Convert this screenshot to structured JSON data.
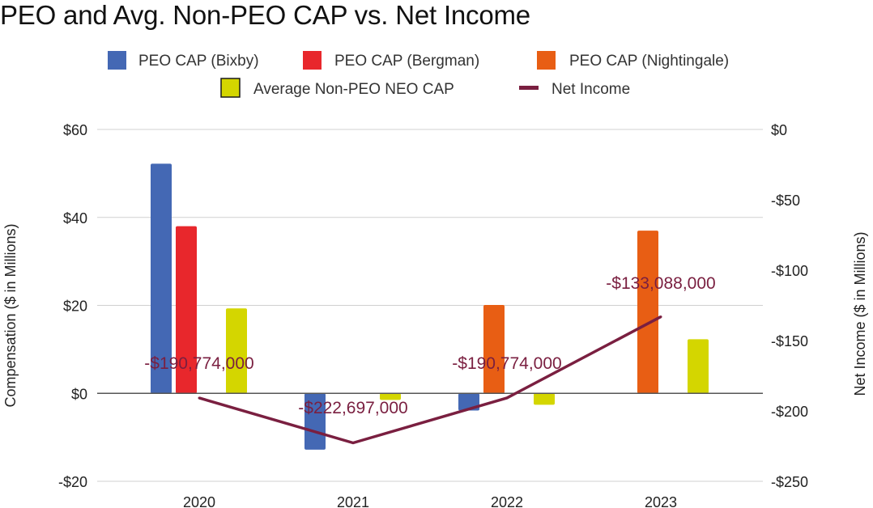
{
  "chart_data": {
    "type": "bar",
    "title": "PEO and Avg. Non-PEO CAP vs. Net Income",
    "categories": [
      "2020",
      "2021",
      "2022",
      "2023"
    ],
    "ylabel": "Compensation ($ in Millions)",
    "ylabel_right": "Net Income ($ in Millions)",
    "ylim": [
      -20,
      60
    ],
    "ylim_right": [
      -250,
      0
    ],
    "yticks": [
      60,
      40,
      20,
      0,
      -20
    ],
    "yticks_right": [
      0,
      -50,
      -100,
      -150,
      -200,
      -250
    ],
    "ytick_labels": [
      "$60",
      "$40",
      "$20",
      "$0",
      "-$20"
    ],
    "ytick_labels_right": [
      "$0",
      "-$50",
      "-$100",
      "-$150",
      "-$200",
      "-$250"
    ],
    "grid": true,
    "legend_position": "top",
    "series": [
      {
        "name": "PEO CAP (Bixby)",
        "kind": "bar",
        "axis": "left",
        "color": "#4468b4",
        "values": [
          52.2,
          -12.8,
          -3.9,
          null
        ]
      },
      {
        "name": "PEO CAP (Bergman)",
        "kind": "bar",
        "axis": "left",
        "color": "#e8272c",
        "values": [
          38.0,
          null,
          null,
          null
        ]
      },
      {
        "name": "PEO CAP (Nightingale)",
        "kind": "bar",
        "axis": "left",
        "color": "#e85e14",
        "values": [
          null,
          null,
          20.1,
          37.0
        ]
      },
      {
        "name": "Average Non-PEO NEO CAP",
        "kind": "bar",
        "axis": "left",
        "color": "#d4d600",
        "values": [
          19.3,
          -1.5,
          -2.6,
          12.3
        ]
      },
      {
        "name": "Net Income",
        "kind": "line",
        "axis": "right",
        "color": "#7a1f40",
        "values": [
          -190.774,
          -222.697,
          -190.774,
          -133.088
        ],
        "data_labels": [
          "-$190,774,000",
          "-$222,697,000",
          "-$190,774,000",
          "-$133,088,000"
        ]
      }
    ]
  }
}
